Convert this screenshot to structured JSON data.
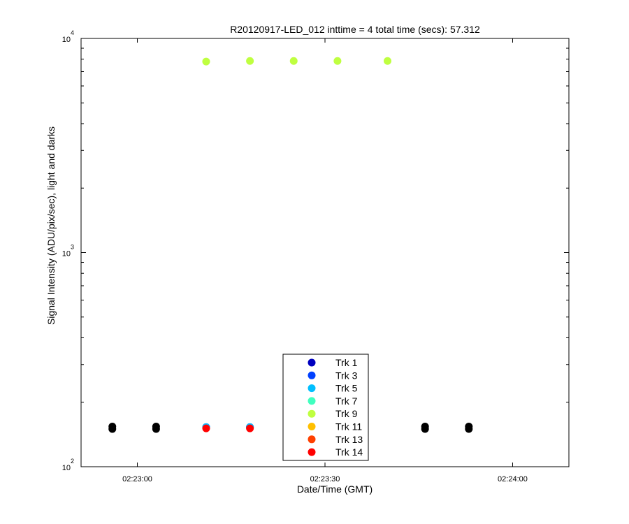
{
  "chart_data": {
    "type": "scatter",
    "title": "R20120917-LED_012 inttime = 4 total time (secs): 57.312",
    "xlabel": "Date/Time (GMT)",
    "ylabel": "Signal Intensity (ADU/pix/sec), light and darks",
    "y_scale": "log",
    "ylim": [
      100,
      10000
    ],
    "xlim": [
      "02:22:51",
      "02:24:09"
    ],
    "x_ticks": [
      "02:23:00",
      "02:23:30",
      "02:24:00"
    ],
    "y_ticks": [
      {
        "base": "10",
        "exp": "2",
        "value": 100
      },
      {
        "base": "10",
        "exp": "3",
        "value": 1000
      },
      {
        "base": "10",
        "exp": "4",
        "value": 10000
      }
    ],
    "legend_position": "bottom-center",
    "series": [
      {
        "name": "Trk 1",
        "color": "#0000bf",
        "x": [
          "02:23:11",
          "02:23:18",
          "02:23:32"
        ],
        "y": [
          153,
          153,
          153
        ]
      },
      {
        "name": "Trk 3",
        "color": "#0040ff",
        "x": [
          "02:23:11",
          "02:23:18",
          "02:23:32"
        ],
        "y": [
          153,
          153,
          153
        ]
      },
      {
        "name": "Trk 5",
        "color": "#00bfff",
        "x": [
          "02:23:11",
          "02:23:18",
          "02:23:32"
        ],
        "y": [
          153,
          153,
          153
        ]
      },
      {
        "name": "Trk 7",
        "color": "#40ffbf",
        "x": [],
        "y": []
      },
      {
        "name": "Trk 9",
        "color": "#bfff40",
        "x": [
          "02:23:11",
          "02:23:18",
          "02:23:25",
          "02:23:32",
          "02:23:40"
        ],
        "y": [
          7800,
          7850,
          7850,
          7850,
          7850
        ]
      },
      {
        "name": "Trk 11",
        "color": "#ffbf00",
        "x": [],
        "y": []
      },
      {
        "name": "Trk 13",
        "color": "#ff4000",
        "x": [],
        "y": []
      },
      {
        "name": "Trk 14",
        "color": "#ff0000",
        "x": [
          "02:23:11",
          "02:23:18",
          "02:23:32"
        ],
        "y": [
          151,
          151,
          151
        ]
      }
    ],
    "darks": {
      "color": "#000000",
      "x": [
        "02:22:56",
        "02:22:56",
        "02:23:03",
        "02:23:03",
        "02:23:46",
        "02:23:46",
        "02:23:53",
        "02:23:53"
      ],
      "y": [
        150,
        154,
        150,
        154,
        150,
        154,
        150,
        154
      ]
    }
  }
}
